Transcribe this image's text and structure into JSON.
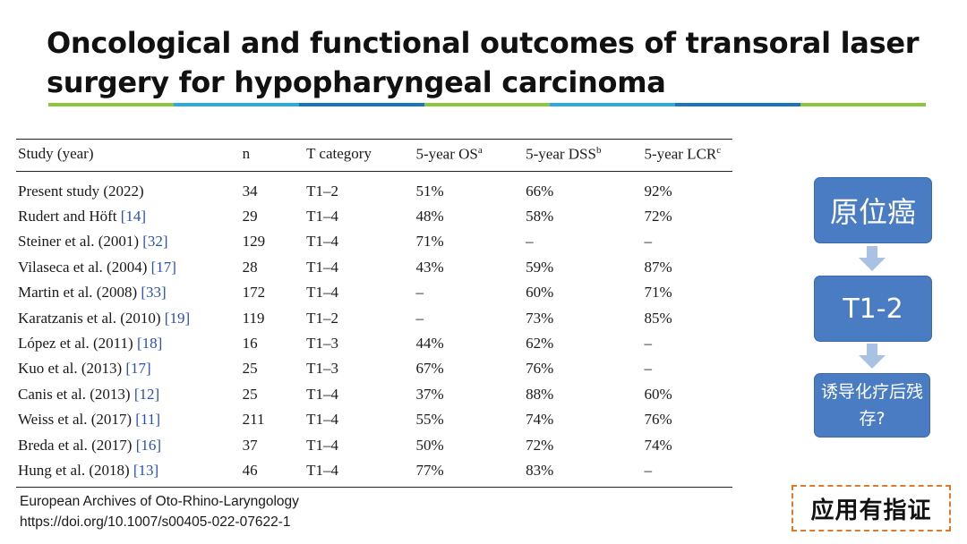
{
  "slide": {
    "title": "Oncological and functional outcomes of transoral laser surgery for hypopharyngeal carcinoma",
    "rule_colors": [
      "#8cc63f",
      "#29abe2",
      "#1b75bc",
      "#8cc63f",
      "#29abe2",
      "#1b75bc",
      "#8cc63f"
    ]
  },
  "table": {
    "headers": [
      {
        "label": "Study (year)",
        "sup": ""
      },
      {
        "label": "n",
        "sup": ""
      },
      {
        "label": "T category",
        "sup": ""
      },
      {
        "label": "5-year OS",
        "sup": "a"
      },
      {
        "label": "5-year DSS",
        "sup": "b"
      },
      {
        "label": "5-year LCR",
        "sup": "c"
      }
    ],
    "rows": [
      {
        "study": "Present study (2022)",
        "ref": "",
        "n": "34",
        "t": "T1–2",
        "os": "51%",
        "dss": "66%",
        "lcr": "92%"
      },
      {
        "study": "Rudert and Höft ",
        "ref": "[14]",
        "n": "29",
        "t": "T1–4",
        "os": "48%",
        "dss": "58%",
        "lcr": "72%"
      },
      {
        "study": "Steiner et al. (2001) ",
        "ref": "[32]",
        "n": "129",
        "t": "T1–4",
        "os": "71%",
        "dss": "–",
        "lcr": "–"
      },
      {
        "study": "Vilaseca et al. (2004) ",
        "ref": "[17]",
        "n": "28",
        "t": "T1–4",
        "os": "43%",
        "dss": "59%",
        "lcr": "87%"
      },
      {
        "study": "Martin et al. (2008) ",
        "ref": "[33]",
        "n": "172",
        "t": "T1–4",
        "os": "–",
        "dss": "60%",
        "lcr": "71%"
      },
      {
        "study": "Karatzanis et al. (2010) ",
        "ref": "[19]",
        "n": "119",
        "t": "T1–2",
        "os": "–",
        "dss": "73%",
        "lcr": "85%"
      },
      {
        "study": "López et al. (2011) ",
        "ref": "[18]",
        "n": "16",
        "t": "T1–3",
        "os": "44%",
        "dss": "62%",
        "lcr": "–"
      },
      {
        "study": "Kuo et al. (2013) ",
        "ref": "[17]",
        "n": "25",
        "t": "T1–3",
        "os": "67%",
        "dss": "76%",
        "lcr": "–"
      },
      {
        "study": "Canis et al. (2013) ",
        "ref": "[12]",
        "n": "25",
        "t": "T1–4",
        "os": "37%",
        "dss": "88%",
        "lcr": "60%"
      },
      {
        "study": "Weiss et al. (2017) ",
        "ref": "[11]",
        "n": "211",
        "t": "T1–4",
        "os": "55%",
        "dss": "74%",
        "lcr": "76%"
      },
      {
        "study": "Breda et al. (2017) ",
        "ref": "[16]",
        "n": "37",
        "t": "T1–4",
        "os": "50%",
        "dss": "72%",
        "lcr": "74%"
      },
      {
        "study": "Hung et al. (2018) ",
        "ref": "[13]",
        "n": "46",
        "t": "T1–4",
        "os": "77%",
        "dss": "83%",
        "lcr": "–"
      }
    ]
  },
  "source": {
    "journal": "European Archives of Oto-Rhino-Laryngology",
    "doi": "https://doi.org/10.1007/s00405-022-07622-1"
  },
  "flow": {
    "box1": "原位癌",
    "box2": "T1-2",
    "box3": "诱导化疗后残存?",
    "arrow_icon": "arrow-down-icon"
  },
  "badge": {
    "label": "应用有指证"
  }
}
